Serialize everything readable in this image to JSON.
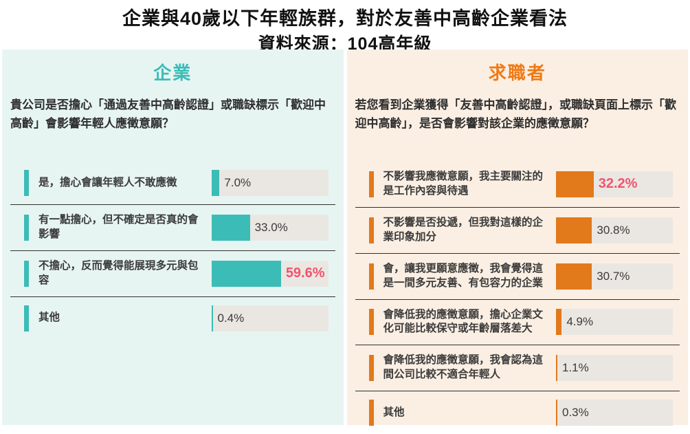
{
  "title": {
    "line1": "企業與40歲以下年輕族群，對於友善中高齡企業看法",
    "line2": "資料來源：104高年級"
  },
  "colors": {
    "company_accent": "#3CBCB6",
    "company_bg": "#E7F5F2",
    "jobseeker_accent": "#E2791B",
    "jobseeker_header": "#EE7A16",
    "jobseeker_bg": "#FBEFE3",
    "bar_track": "#EAE7E2",
    "highlight_text": "#F2536E",
    "label_text": "#3b3b3b",
    "title_text": "#111111"
  },
  "panels": [
    {
      "header": "企業",
      "question": "貴公司是否擔心「通過友善中高齡認證」或職缺標示「歡迎中高齡」會影響年輕人應徵意願？",
      "rows": [
        {
          "label": "是，擔心會讓年輕人不敢應徵",
          "value": 7.0,
          "value_label": "7.0%",
          "highlight": false
        },
        {
          "label": "有一點擔心，但不確定是否真的會影響",
          "value": 33.0,
          "value_label": "33.0%",
          "highlight": false
        },
        {
          "label": "不擔心，反而覺得能展現多元與包容",
          "value": 59.6,
          "value_label": "59.6%",
          "highlight": true
        },
        {
          "label": "其他",
          "value": 0.4,
          "value_label": "0.4%",
          "highlight": false
        }
      ]
    },
    {
      "header": "求職者",
      "question": "若您看到企業獲得「友善中高齡認證」，或職缺頁面上標示「歡迎中高齡」，是否會影響對該企業的應徵意願？",
      "rows": [
        {
          "label": "不影響我應徵意願，我主要關注的是工作內容與待遇",
          "value": 32.2,
          "value_label": "32.2%",
          "highlight": true
        },
        {
          "label": "不影響是否投遞，但我對這樣的企業印象加分",
          "value": 30.8,
          "value_label": "30.8%",
          "highlight": false
        },
        {
          "label": "會，讓我更願意應徵，我會覺得這是一間多元友善、有包容力的企業",
          "value": 30.7,
          "value_label": "30.7%",
          "highlight": false
        },
        {
          "label": "會降低我的應徵意願，擔心企業文化可能比較保守或年齡層落差大",
          "value": 4.9,
          "value_label": "4.9%",
          "highlight": false
        },
        {
          "label": "會降低我的應徵意願，我會認為這間公司比較不適合年輕人",
          "value": 1.1,
          "value_label": "1.1%",
          "highlight": false
        },
        {
          "label": "其他",
          "value": 0.3,
          "value_label": "0.3%",
          "highlight": false
        }
      ]
    }
  ],
  "chart_data": [
    {
      "type": "bar",
      "orientation": "horizontal",
      "title": "企業：貴公司是否擔心「通過友善中高齡認證」或職缺標示「歡迎中高齡」會影響年輕人應徵意願？",
      "categories": [
        "是，擔心會讓年輕人不敢應徵",
        "有一點擔心，但不確定是否真的會影響",
        "不擔心，反而覺得能展現多元與包容",
        "其他"
      ],
      "values": [
        7.0,
        33.0,
        59.6,
        0.4
      ],
      "unit": "%",
      "xlim": [
        0,
        100
      ],
      "bar_color": "#3CBCB6",
      "highlighted_category": "不擔心，反而覺得能展現多元與包容"
    },
    {
      "type": "bar",
      "orientation": "horizontal",
      "title": "求職者：若您看到企業獲得「友善中高齡認證」，或職缺頁面上標示「歡迎中高齡」，是否會影響對該企業的應徵意願？",
      "categories": [
        "不影響我應徵意願，我主要關注的是工作內容與待遇",
        "不影響是否投遞，但我對這樣的企業印象加分",
        "會，讓我更願意應徵，我會覺得這是一間多元友善、有包容力的企業",
        "會降低我的應徵意願，擔心企業文化可能比較保守或年齡層落差大",
        "會降低我的應徵意願，我會認為這間公司比較不適合年輕人",
        "其他"
      ],
      "values": [
        32.2,
        30.8,
        30.7,
        4.9,
        1.1,
        0.3
      ],
      "unit": "%",
      "xlim": [
        0,
        100
      ],
      "bar_color": "#E2791B",
      "highlighted_category": "不影響我應徵意願，我主要關注的是工作內容與待遇"
    }
  ]
}
